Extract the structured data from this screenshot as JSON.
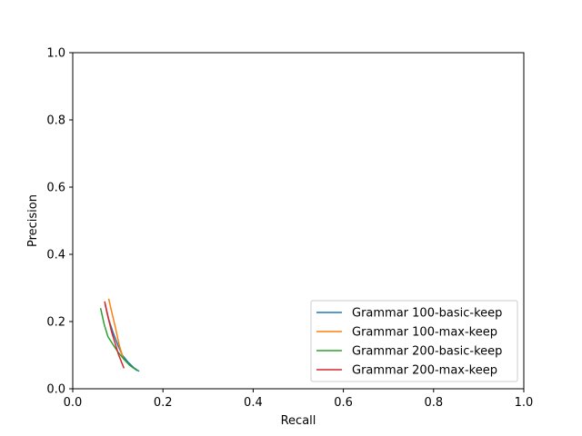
{
  "chart_data": {
    "type": "line",
    "title": "",
    "xlabel": "Recall",
    "ylabel": "Precision",
    "xlim": [
      0,
      1
    ],
    "ylim": [
      0,
      1
    ],
    "xticks": [
      "0.0",
      "0.2",
      "0.4",
      "0.6",
      "0.8",
      "1.0"
    ],
    "yticks": [
      "0.0",
      "0.2",
      "0.4",
      "0.6",
      "0.8",
      "1.0"
    ],
    "grid": false,
    "legend_position": "lower-right",
    "series": [
      {
        "name": "Grammar 100-basic-keep",
        "color": "#1f77b4",
        "x": [
          0.072,
          0.08,
          0.09,
          0.1,
          0.11,
          0.122,
          0.135,
          0.146
        ],
        "y": [
          0.25,
          0.205,
          0.165,
          0.13,
          0.1,
          0.08,
          0.063,
          0.053
        ]
      },
      {
        "name": "Grammar 100-max-keep",
        "color": "#ff7f0e",
        "x": [
          0.08,
          0.087,
          0.095,
          0.103,
          0.112
        ],
        "y": [
          0.266,
          0.225,
          0.18,
          0.13,
          0.09
        ]
      },
      {
        "name": "Grammar 200-basic-keep",
        "color": "#2ca02c",
        "x": [
          0.062,
          0.07,
          0.078,
          0.09,
          0.1,
          0.112,
          0.126,
          0.142
        ],
        "y": [
          0.238,
          0.19,
          0.155,
          0.13,
          0.11,
          0.09,
          0.07,
          0.055
        ]
      },
      {
        "name": "Grammar 200-max-keep",
        "color": "#d62728",
        "x": [
          0.071,
          0.078,
          0.086,
          0.094,
          0.102,
          0.113
        ],
        "y": [
          0.258,
          0.215,
          0.17,
          0.135,
          0.1,
          0.063
        ]
      }
    ]
  }
}
